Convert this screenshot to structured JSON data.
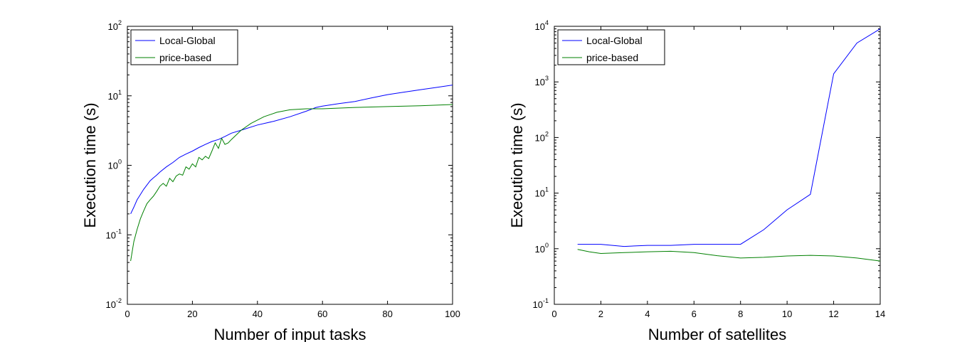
{
  "chart_data": [
    {
      "type": "line",
      "title": "",
      "xlabel": "Number of input tasks",
      "ylabel": "Execution time (s)",
      "xlim": [
        0,
        100
      ],
      "ylim": [
        0.01,
        100
      ],
      "yscale": "log",
      "xticks": [
        0,
        20,
        40,
        60,
        80,
        100
      ],
      "yticks": [
        {
          "value": 0.01,
          "base": "10",
          "exp": "-2"
        },
        {
          "value": 0.1,
          "base": "10",
          "exp": "-1"
        },
        {
          "value": 1,
          "base": "10",
          "exp": "0"
        },
        {
          "value": 10,
          "base": "10",
          "exp": "1"
        },
        {
          "value": 100,
          "base": "10",
          "exp": "2"
        }
      ],
      "grid": false,
      "legend_position": "top-left",
      "series": [
        {
          "name": "Local-Global",
          "color": "#0000ff",
          "x": [
            1,
            2,
            3,
            4,
            5,
            6,
            7,
            8,
            9,
            10,
            12,
            14,
            16,
            18,
            20,
            22,
            24,
            26,
            28,
            30,
            32,
            35,
            40,
            45,
            50,
            55,
            58,
            60,
            65,
            70,
            75,
            80,
            85,
            90,
            95,
            100
          ],
          "y": [
            0.2,
            0.25,
            0.32,
            0.38,
            0.45,
            0.52,
            0.6,
            0.66,
            0.72,
            0.8,
            0.95,
            1.1,
            1.3,
            1.45,
            1.6,
            1.8,
            2.0,
            2.2,
            2.35,
            2.6,
            2.9,
            3.2,
            3.8,
            4.3,
            5.0,
            6.0,
            6.8,
            7.1,
            7.7,
            8.3,
            9.3,
            10.4,
            11.3,
            12.2,
            13.2,
            14.3
          ]
        },
        {
          "name": "price-based",
          "color": "#008000",
          "x": [
            1,
            2,
            3,
            4,
            5,
            6,
            7,
            8,
            9,
            10,
            11,
            12,
            13,
            14,
            15,
            16,
            17,
            18,
            19,
            20,
            21,
            22,
            23,
            24,
            25,
            26,
            27,
            28,
            29,
            30,
            31,
            32,
            33,
            35,
            38,
            42,
            46,
            50,
            55,
            60,
            70,
            80,
            90,
            100
          ],
          "y": [
            0.042,
            0.08,
            0.12,
            0.17,
            0.22,
            0.28,
            0.32,
            0.36,
            0.42,
            0.5,
            0.55,
            0.5,
            0.65,
            0.58,
            0.7,
            0.75,
            0.72,
            0.95,
            0.88,
            1.05,
            0.95,
            1.3,
            1.2,
            1.35,
            1.25,
            1.6,
            2.1,
            1.75,
            2.45,
            2.0,
            2.1,
            2.35,
            2.6,
            3.2,
            4.0,
            5.0,
            5.8,
            6.3,
            6.5,
            6.5,
            6.8,
            7.0,
            7.2,
            7.5
          ]
        }
      ]
    },
    {
      "type": "line",
      "title": "",
      "xlabel": "Number of satellites",
      "ylabel": "Execution time (s)",
      "xlim": [
        0,
        14
      ],
      "ylim": [
        0.1,
        10000
      ],
      "yscale": "log",
      "xticks": [
        0,
        2,
        4,
        6,
        8,
        10,
        12,
        14
      ],
      "yticks": [
        {
          "value": 0.1,
          "base": "10",
          "exp": "-1"
        },
        {
          "value": 1,
          "base": "10",
          "exp": "0"
        },
        {
          "value": 10,
          "base": "10",
          "exp": "1"
        },
        {
          "value": 100,
          "base": "10",
          "exp": "2"
        },
        {
          "value": 1000,
          "base": "10",
          "exp": "3"
        },
        {
          "value": 10000,
          "base": "10",
          "exp": "4"
        }
      ],
      "grid": false,
      "legend_position": "top-left",
      "series": [
        {
          "name": "Local-Global",
          "color": "#0000ff",
          "x": [
            1,
            2,
            3,
            4,
            5,
            6,
            7,
            8,
            9,
            10,
            11,
            12,
            13,
            14
          ],
          "y": [
            1.2,
            1.2,
            1.1,
            1.15,
            1.15,
            1.2,
            1.2,
            1.2,
            2.2,
            5.0,
            9.5,
            1400,
            5000,
            9000
          ]
        },
        {
          "name": "price-based",
          "color": "#008000",
          "x": [
            1,
            1.5,
            2,
            3,
            4,
            5,
            6,
            7,
            8,
            9,
            10,
            11,
            12,
            13,
            14
          ],
          "y": [
            0.97,
            0.88,
            0.82,
            0.85,
            0.88,
            0.9,
            0.85,
            0.75,
            0.68,
            0.7,
            0.74,
            0.76,
            0.74,
            0.68,
            0.6
          ]
        }
      ]
    }
  ]
}
